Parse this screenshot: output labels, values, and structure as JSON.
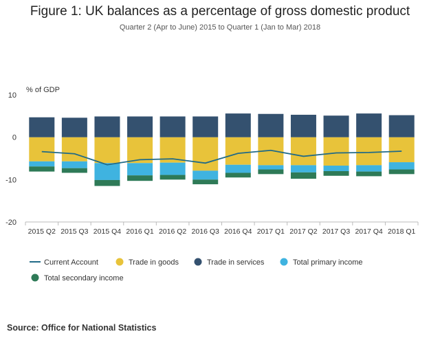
{
  "title": "Figure 1: UK balances as a percentage of gross domestic product",
  "subtitle": "Quarter 2 (Apr to June) 2015 to Quarter 1 (Jan to Mar) 2018",
  "source": "Source: Office for National Statistics",
  "chart_data": {
    "type": "bar",
    "stacked": true,
    "ylabel": "% of GDP",
    "ylim": [
      -20,
      10
    ],
    "yticks": [
      10,
      0,
      -10,
      -20
    ],
    "grid": false,
    "legend_position": "bottom",
    "categories": [
      "2015 Q2",
      "2015 Q3",
      "2015 Q4",
      "2016 Q1",
      "2016 Q2",
      "2016 Q3",
      "2016 Q4",
      "2017 Q1",
      "2017 Q2",
      "2017 Q3",
      "2017 Q4",
      "2018 Q1"
    ],
    "series": [
      {
        "name": "Trade in goods",
        "type": "bar",
        "color": "#e8c33a",
        "values": [
          -5.7,
          -5.7,
          -6.1,
          -6.1,
          -6.0,
          -7.9,
          -6.5,
          -6.6,
          -6.6,
          -6.7,
          -6.6,
          -5.9
        ]
      },
      {
        "name": "Trade in services",
        "type": "bar",
        "color": "#34516f",
        "values": [
          4.7,
          4.6,
          4.9,
          4.9,
          4.9,
          4.9,
          5.6,
          5.5,
          5.3,
          5.1,
          5.6,
          5.2
        ]
      },
      {
        "name": "Total primary income",
        "type": "bar",
        "color": "#3fb3e0",
        "values": [
          -1.2,
          -1.6,
          -4.0,
          -2.9,
          -2.9,
          -2.1,
          -1.9,
          -1.0,
          -1.7,
          -1.3,
          -1.5,
          -1.7
        ]
      },
      {
        "name": "Total secondary income",
        "type": "bar",
        "color": "#2e7a57",
        "values": [
          -1.2,
          -1.1,
          -1.4,
          -1.3,
          -1.1,
          -1.1,
          -1.1,
          -1.1,
          -1.5,
          -1.1,
          -1.1,
          -1.1
        ]
      },
      {
        "name": "Current Account",
        "type": "line",
        "color": "#206a87",
        "values": [
          -3.4,
          -3.9,
          -6.5,
          -5.3,
          -5.1,
          -6.1,
          -3.8,
          -3.1,
          -4.5,
          -3.7,
          -3.6,
          -3.3
        ]
      }
    ]
  }
}
